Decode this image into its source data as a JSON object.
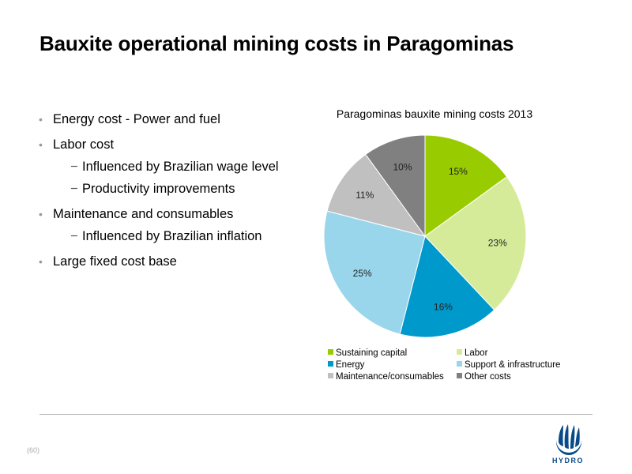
{
  "slide": {
    "title": "Bauxite operational mining costs in Paragominas",
    "page_number": "(60)",
    "logo_text": "HYDRO"
  },
  "bullets": [
    {
      "text": "Energy cost - Power and fuel",
      "subs": []
    },
    {
      "text": "Labor cost",
      "subs": [
        "Influenced by Brazilian wage level",
        "Productivity improvements"
      ]
    },
    {
      "text": "Maintenance and consumables",
      "subs": [
        "Influenced by Brazilian inflation"
      ]
    },
    {
      "text": "Large fixed cost base",
      "subs": []
    }
  ],
  "chart_data": {
    "type": "pie",
    "title": "Paragominas bauxite mining costs 2013",
    "start_angle_deg": 0,
    "direction": "clockwise",
    "legend_position": "bottom",
    "slices": [
      {
        "label": "Sustaining capital",
        "value": 15,
        "display": "15%",
        "color": "#99cc00"
      },
      {
        "label": "Labor",
        "value": 23,
        "display": "23%",
        "color": "#d6eb99"
      },
      {
        "label": "Energy",
        "value": 16,
        "display": "16%",
        "color": "#0099cc"
      },
      {
        "label": "Support & infrastructure",
        "value": 25,
        "display": "25%",
        "color": "#99d6eb"
      },
      {
        "label": "Maintenance/consumables",
        "value": 11,
        "display": "11%",
        "color": "#c0c0c0"
      },
      {
        "label": "Other costs",
        "value": 10,
        "display": "10%",
        "color": "#808080"
      }
    ]
  }
}
